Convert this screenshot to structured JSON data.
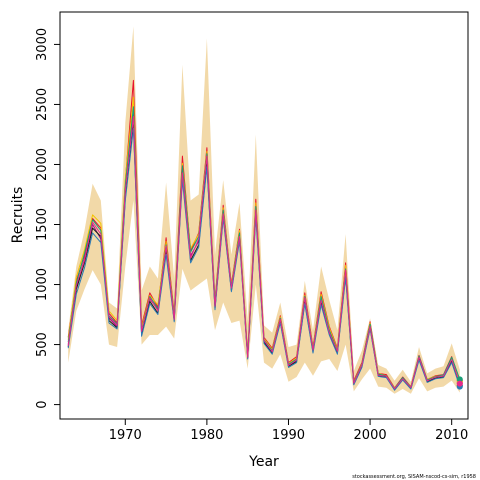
{
  "chart_data": {
    "type": "line",
    "title": "",
    "xlabel": "Year",
    "ylabel": "Recruits",
    "credit": "stockassessment.org, SISAM-nscod-cs-sim, r1958",
    "xlim": [
      1962,
      2012
    ],
    "ylim": [
      -120,
      3270
    ],
    "x_ticks": [
      1970,
      1980,
      1990,
      2000,
      2010
    ],
    "y_ticks": [
      0,
      500,
      1000,
      1500,
      2000,
      2500,
      3000
    ],
    "grid": false,
    "legend": "none",
    "x": [
      1963,
      1964,
      1965,
      1966,
      1967,
      1968,
      1969,
      1970,
      1971,
      1972,
      1973,
      1974,
      1975,
      1976,
      1977,
      1978,
      1979,
      1980,
      1981,
      1982,
      1983,
      1984,
      1985,
      1986,
      1987,
      1988,
      1989,
      1990,
      1991,
      1992,
      1993,
      1994,
      1995,
      1996,
      1997,
      1998,
      1999,
      2000,
      2001,
      2002,
      2003,
      2004,
      2005,
      2006,
      2007,
      2008,
      2009,
      2010,
      2011
    ],
    "band_upper": [
      620,
      1150,
      1450,
      1840,
      1700,
      850,
      800,
      2350,
      3150,
      950,
      1150,
      1050,
      1850,
      1050,
      2830,
      1700,
      1750,
      3050,
      1250,
      1870,
      1250,
      1680,
      700,
      2250,
      660,
      600,
      850,
      480,
      500,
      1030,
      620,
      1150,
      870,
      620,
      1420,
      280,
      450,
      720,
      330,
      300,
      200,
      290,
      190,
      480,
      260,
      300,
      320,
      510,
      290
    ],
    "band_lower": [
      350,
      780,
      960,
      1120,
      1000,
      500,
      480,
      1150,
      1700,
      500,
      580,
      580,
      650,
      550,
      1130,
      950,
      1000,
      1050,
      620,
      850,
      680,
      700,
      300,
      1000,
      350,
      300,
      420,
      190,
      230,
      350,
      240,
      360,
      380,
      280,
      500,
      110,
      210,
      300,
      150,
      140,
      90,
      130,
      90,
      220,
      110,
      140,
      150,
      200,
      100
    ],
    "series": [
      {
        "values": [
          560,
          1030,
          1240,
          1550,
          1470,
          760,
          680,
          1860,
          2700,
          660,
          930,
          810,
          1390,
          760,
          2070,
          1280,
          1430,
          2140,
          870,
          1660,
          1000,
          1460,
          420,
          1710,
          560,
          470,
          740,
          350,
          400,
          930,
          480,
          940,
          650,
          470,
          1180,
          200,
          350,
          690,
          260,
          250,
          140,
          230,
          150,
          410,
          210,
          240,
          250,
          400,
          200
        ]
      },
      {
        "values": [
          500,
          980,
          1210,
          1500,
          1380,
          720,
          650,
          1800,
          2450,
          600,
          880,
          790,
          1310,
          720,
          1960,
          1240,
          1360,
          2050,
          830,
          1600,
          960,
          1410,
          400,
          1630,
          530,
          440,
          700,
          330,
          370,
          880,
          450,
          880,
          610,
          440,
          1110,
          180,
          330,
          660,
          250,
          240,
          130,
          220,
          140,
          390,
          200,
          230,
          240,
          380,
          180
        ]
      },
      {
        "values": [
          480,
          960,
          1180,
          1470,
          1400,
          700,
          640,
          1720,
          2330,
          580,
          860,
          760,
          1280,
          700,
          1900,
          1200,
          1330,
          2000,
          800,
          1570,
          950,
          1380,
          390,
          1590,
          520,
          430,
          690,
          320,
          360,
          850,
          440,
          850,
          590,
          430,
          1080,
          170,
          320,
          640,
          240,
          230,
          125,
          210,
          135,
          380,
          190,
          220,
          230,
          360,
          160
        ]
      },
      {
        "values": [
          540,
          1060,
          1290,
          1580,
          1510,
          780,
          700,
          1880,
          2560,
          640,
          910,
          830,
          1360,
          740,
          2010,
          1300,
          1420,
          2110,
          860,
          1640,
          990,
          1450,
          420,
          1680,
          550,
          460,
          730,
          340,
          390,
          910,
          470,
          920,
          640,
          460,
          1160,
          190,
          340,
          680,
          260,
          240,
          140,
          220,
          150,
          400,
          210,
          235,
          245,
          390,
          190
        ]
      },
      {
        "values": [
          470,
          920,
          1140,
          1430,
          1350,
          680,
          630,
          1700,
          2300,
          570,
          840,
          750,
          1250,
          690,
          1870,
          1180,
          1310,
          1980,
          790,
          1550,
          940,
          1360,
          380,
          1560,
          510,
          420,
          680,
          310,
          350,
          840,
          430,
          830,
          580,
          420,
          1060,
          165,
          310,
          630,
          235,
          225,
          120,
          205,
          130,
          370,
          185,
          215,
          225,
          350,
          150
        ]
      },
      {
        "values": [
          520,
          1010,
          1260,
          1540,
          1450,
          740,
          670,
          1830,
          2480,
          620,
          900,
          800,
          1330,
          730,
          1990,
          1270,
          1400,
          2090,
          850,
          1620,
          980,
          1430,
          410,
          1650,
          540,
          450,
          720,
          335,
          380,
          900,
          460,
          900,
          620,
          450,
          1130,
          185,
          335,
          670,
          255,
          238,
          135,
          225,
          145,
          405,
          205,
          232,
          248,
          395,
          210
        ]
      },
      {
        "values": [
          490,
          990,
          1200,
          1520,
          1420,
          730,
          660,
          1780,
          2400,
          610,
          890,
          780,
          1320,
          710,
          1930,
          1220,
          1380,
          2070,
          820,
          1590,
          970,
          1400,
          395,
          1620,
          535,
          440,
          710,
          325,
          372,
          890,
          455,
          870,
          600,
          445,
          1120,
          178,
          328,
          650,
          245,
          235,
          132,
          215,
          142,
          395,
          198,
          228,
          238,
          375,
          175
        ]
      }
    ],
    "series_colors": [
      "#e8112d",
      "#9b0a8c",
      "#1a1a1a",
      "#f4c300",
      "#2c7bb6",
      "#1b9e77",
      "#e7298a"
    ],
    "band_color": "#f2d9a8"
  }
}
